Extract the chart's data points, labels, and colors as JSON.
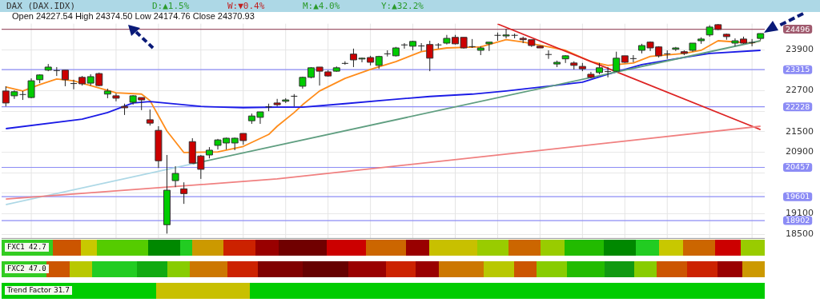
{
  "chart_data": {
    "type": "candlestick",
    "title": "DAX (DAX.IDX)",
    "categories": [
      null,
      null,
      null,
      null,
      null,
      null,
      null,
      null,
      null,
      null,
      null,
      null,
      null,
      null,
      null,
      null,
      null,
      null,
      null,
      null,
      null,
      null,
      null,
      null,
      null,
      null,
      null,
      null,
      null,
      null,
      null,
      null,
      null,
      null,
      null,
      null,
      null,
      null,
      null,
      null,
      null,
      null,
      null,
      null,
      null,
      null,
      null,
      null,
      null,
      null,
      null,
      null,
      null,
      null,
      null,
      null,
      null,
      null,
      null,
      null,
      null,
      null,
      null,
      null,
      null,
      null,
      null,
      null,
      null,
      null,
      null,
      null,
      null,
      null,
      null,
      null,
      null,
      null,
      null,
      null,
      null,
      null,
      null,
      null,
      null,
      null,
      null,
      null,
      null,
      null
    ],
    "ohlc": [
      [
        22690,
        22830,
        22240,
        22340
      ],
      [
        22550,
        22710,
        22460,
        22670
      ],
      [
        22600,
        22690,
        22430,
        22600
      ],
      [
        22500,
        23060,
        22480,
        22990
      ],
      [
        23020,
        23180,
        22920,
        23160
      ],
      [
        23300,
        23480,
        23270,
        23390
      ],
      [
        23300,
        23390,
        23130,
        23300
      ],
      [
        23300,
        23300,
        22830,
        23020
      ],
      [
        22920,
        23020,
        22740,
        22920
      ],
      [
        23090,
        23130,
        22850,
        22900
      ],
      [
        22920,
        23180,
        22850,
        23110
      ],
      [
        23200,
        23230,
        22830,
        22850
      ],
      [
        22600,
        22760,
        22480,
        22690
      ],
      [
        22550,
        22620,
        22390,
        22480
      ],
      [
        22240,
        22320,
        21990,
        22200
      ],
      [
        22360,
        22570,
        22290,
        22550
      ],
      [
        22500,
        22500,
        22130,
        22430
      ],
      [
        21850,
        22150,
        21680,
        21750
      ],
      [
        21540,
        21660,
        20440,
        20650
      ],
      [
        18780,
        20820,
        18520,
        19790
      ],
      [
        20070,
        20490,
        19880,
        20280
      ],
      [
        19830,
        20020,
        19390,
        19690
      ],
      [
        21210,
        21310,
        20580,
        20580
      ],
      [
        20790,
        20820,
        20120,
        20400
      ],
      [
        20820,
        21050,
        20720,
        20960
      ],
      [
        21100,
        21290,
        20980,
        21260
      ],
      [
        21170,
        21330,
        20980,
        21310
      ],
      [
        21170,
        21330,
        20960,
        21310
      ],
      [
        21450,
        21450,
        21120,
        21240
      ],
      [
        21820,
        22030,
        21730,
        21960
      ],
      [
        21920,
        22080,
        21730,
        22080
      ],
      [
        22240,
        22320,
        22100,
        22240
      ],
      [
        22340,
        22460,
        22240,
        22290
      ],
      [
        22390,
        22480,
        22340,
        22430
      ],
      [
        22550,
        22600,
        22240,
        22550
      ],
      [
        22830,
        23110,
        22760,
        23090
      ],
      [
        23090,
        23390,
        23060,
        23370
      ],
      [
        23390,
        23390,
        22850,
        23270
      ],
      [
        23250,
        23300,
        23110,
        23130
      ],
      [
        23270,
        23410,
        23250,
        23370
      ],
      [
        23510,
        23560,
        23460,
        23510
      ],
      [
        23770,
        23930,
        23390,
        23600
      ],
      [
        23630,
        23670,
        23530,
        23650
      ],
      [
        23670,
        23720,
        23440,
        23530
      ],
      [
        23440,
        23720,
        23340,
        23700
      ],
      [
        23790,
        23880,
        23700,
        23790
      ],
      [
        23720,
        23980,
        23700,
        23950
      ],
      [
        24050,
        24090,
        23930,
        24050
      ],
      [
        24000,
        24160,
        23880,
        24140
      ],
      [
        24020,
        24090,
        23860,
        24020
      ],
      [
        24050,
        24160,
        23270,
        23650
      ],
      [
        24050,
        24090,
        23930,
        24050
      ],
      [
        24090,
        24330,
        24050,
        24230
      ],
      [
        24260,
        24330,
        24050,
        24070
      ],
      [
        24260,
        24260,
        23930,
        23950
      ],
      [
        24000,
        24210,
        23950,
        24000
      ],
      [
        23880,
        24000,
        23740,
        23950
      ],
      [
        24070,
        24120,
        23860,
        24120
      ],
      [
        24330,
        24400,
        24160,
        24330
      ],
      [
        24300,
        24510,
        24230,
        24330
      ],
      [
        24330,
        24370,
        24230,
        24330
      ],
      [
        24230,
        24280,
        24090,
        24190
      ],
      [
        24190,
        24190,
        23980,
        24020
      ],
      [
        24000,
        24020,
        23950,
        23950
      ],
      [
        23770,
        23880,
        23630,
        23770
      ],
      [
        23480,
        23580,
        23390,
        23530
      ],
      [
        23630,
        23740,
        23510,
        23720
      ],
      [
        23510,
        23560,
        23320,
        23440
      ],
      [
        23410,
        23510,
        23270,
        23340
      ],
      [
        23180,
        23250,
        23060,
        23090
      ],
      [
        23230,
        23510,
        23180,
        23370
      ],
      [
        23270,
        23390,
        23090,
        23270
      ],
      [
        23270,
        23840,
        23250,
        23650
      ],
      [
        23720,
        23720,
        23510,
        23530
      ],
      [
        23650,
        23740,
        23530,
        23650
      ],
      [
        23880,
        24070,
        23790,
        24020
      ],
      [
        24120,
        24140,
        23860,
        23950
      ],
      [
        23980,
        24000,
        23670,
        23720
      ],
      [
        23790,
        23880,
        23630,
        23790
      ],
      [
        23910,
        23980,
        23860,
        23950
      ],
      [
        23840,
        23880,
        23740,
        23790
      ],
      [
        23880,
        24090,
        23840,
        24090
      ],
      [
        24160,
        24260,
        24070,
        24210
      ],
      [
        24330,
        24610,
        24280,
        24560
      ],
      [
        24630,
        24650,
        24470,
        24490
      ],
      [
        24350,
        24370,
        24190,
        24280
      ],
      [
        24090,
        24230,
        24000,
        24160
      ],
      [
        24210,
        24280,
        24070,
        24090
      ],
      [
        24120,
        24210,
        24000,
        24120
      ],
      [
        24227.54,
        24374.5,
        24174.76,
        24370.93
      ]
    ],
    "series": [
      {
        "type": "line",
        "color": "#f08080",
        "values": [
          19530,
          null,
          null,
          null,
          null,
          null,
          null,
          null,
          null,
          null,
          null,
          null,
          null,
          null,
          null,
          null,
          null,
          null,
          null,
          null,
          null,
          null,
          null,
          null,
          null,
          null,
          null,
          null,
          null,
          null,
          null,
          null,
          20120,
          null,
          null,
          null,
          null,
          null,
          null,
          null,
          null,
          null,
          null,
          null,
          null,
          null,
          null,
          null,
          null,
          null,
          null,
          null,
          null,
          null,
          null,
          null,
          null,
          null,
          null,
          null,
          null,
          null,
          null,
          null,
          20980,
          null,
          null,
          null,
          null,
          null,
          null,
          null,
          null,
          null,
          null,
          null,
          null,
          null,
          null,
          null,
          null,
          null,
          null,
          null,
          null,
          null,
          null,
          null,
          null,
          21660
        ]
      },
      {
        "type": "line",
        "color": "#add8e6",
        "values": [
          19370,
          null,
          null,
          null,
          null,
          null,
          null,
          null,
          null,
          null,
          null,
          null,
          null,
          null,
          null,
          null,
          null,
          null,
          null,
          null,
          null,
          null,
          20560,
          null,
          null,
          null,
          null,
          null,
          null,
          null,
          null,
          null,
          null,
          null,
          null,
          null,
          null,
          null,
          null,
          null,
          null,
          null,
          null,
          null,
          null,
          null,
          null,
          null,
          null,
          null,
          null,
          null,
          null,
          null,
          null,
          null,
          null,
          null,
          null,
          null,
          null,
          null,
          null,
          null,
          null,
          null,
          null,
          null,
          null,
          null,
          null,
          null,
          null,
          null,
          null,
          null,
          null,
          null,
          null,
          null,
          null,
          null,
          null,
          null,
          null,
          null,
          null,
          null,
          null,
          null
        ]
      },
      {
        "type": "line",
        "color": "#5f9e80",
        "values": [
          null,
          null,
          null,
          null,
          null,
          null,
          null,
          null,
          null,
          null,
          null,
          null,
          null,
          null,
          null,
          null,
          null,
          null,
          null,
          null,
          null,
          null,
          20560,
          null,
          null,
          null,
          null,
          null,
          null,
          null,
          null,
          null,
          null,
          null,
          null,
          null,
          null,
          null,
          null,
          null,
          null,
          null,
          null,
          null,
          null,
          null,
          null,
          null,
          null,
          null,
          null,
          null,
          null,
          null,
          null,
          null,
          null,
          null,
          null,
          null,
          null,
          null,
          null,
          null,
          null,
          null,
          null,
          null,
          null,
          null,
          null,
          null,
          null,
          null,
          null,
          null,
          null,
          null,
          null,
          null,
          null,
          null,
          null,
          null,
          null,
          null,
          null,
          null,
          null,
          24160
        ]
      },
      {
        "type": "line",
        "color": "#dd2222",
        "values": [
          null,
          null,
          null,
          null,
          null,
          null,
          null,
          null,
          null,
          null,
          null,
          null,
          null,
          null,
          null,
          null,
          null,
          null,
          null,
          null,
          null,
          null,
          null,
          null,
          null,
          null,
          null,
          null,
          null,
          null,
          null,
          null,
          null,
          null,
          null,
          null,
          null,
          null,
          null,
          null,
          null,
          null,
          null,
          null,
          null,
          null,
          null,
          null,
          null,
          null,
          null,
          null,
          null,
          null,
          null,
          null,
          null,
          null,
          24650,
          null,
          null,
          null,
          null,
          null,
          null,
          null,
          null,
          null,
          null,
          null,
          null,
          null,
          null,
          null,
          null,
          null,
          null,
          null,
          null,
          null,
          null,
          null,
          null,
          null,
          null,
          null,
          null,
          null,
          null,
          21560
        ]
      },
      {
        "type": "line",
        "color": "#1a1ae6",
        "values": [
          21590,
          null,
          null,
          null,
          null,
          null,
          null,
          null,
          null,
          21870,
          null,
          null,
          22060,
          null,
          null,
          22340,
          null,
          22380,
          null,
          null,
          null,
          null,
          null,
          22240,
          null,
          null,
          null,
          null,
          22200,
          null,
          null,
          null,
          22220,
          null,
          null,
          22220,
          null,
          null,
          null,
          null,
          22320,
          null,
          null,
          null,
          null,
          22430,
          null,
          null,
          null,
          null,
          22530,
          null,
          null,
          null,
          null,
          22600,
          null,
          null,
          null,
          22690,
          null,
          null,
          null,
          null,
          22830,
          null,
          null,
          null,
          22950,
          null,
          null,
          23180,
          null,
          null,
          null,
          23460,
          null,
          null,
          null,
          null,
          23670,
          null,
          null,
          23790,
          null,
          null,
          null,
          null,
          null,
          23880
        ]
      },
      {
        "type": "line",
        "color": "#ff8c1a",
        "values": [
          22810,
          null,
          22690,
          null,
          22880,
          null,
          23040,
          null,
          22990,
          null,
          null,
          null,
          null,
          22640,
          null,
          null,
          22600,
          22410,
          null,
          21520,
          null,
          20890,
          null,
          null,
          null,
          20910,
          null,
          null,
          21070,
          null,
          null,
          21420,
          21660,
          null,
          22060,
          22290,
          null,
          22690,
          null,
          null,
          23060,
          null,
          null,
          23320,
          null,
          null,
          23550,
          null,
          null,
          23840,
          null,
          null,
          23950,
          null,
          null,
          null,
          23980,
          null,
          null,
          24190,
          null,
          24120,
          null,
          null,
          23980,
          null,
          23880,
          null,
          null,
          23550,
          null,
          23440,
          null,
          null,
          23510,
          null,
          23700,
          null,
          null,
          null,
          23790,
          null,
          23880,
          null,
          24160,
          null,
          null,
          null,
          24090,
          24160
        ]
      }
    ],
    "ylim": [
      18380,
      24660
    ],
    "yticks": [
      18500,
      19100,
      {
        "value": 19700,
        "label": null
      },
      {
        "value": 20300,
        "label": null
      },
      20900,
      21500,
      {
        "value": 22100,
        "label": null
      },
      22700,
      {
        "value": 23300,
        "label": null
      },
      23900,
      {
        "value": 24500,
        "label": null
      }
    ],
    "ref_lines": [
      {
        "axis": "y",
        "value": 24496,
        "label": "24496",
        "color": "#a05a6e"
      },
      {
        "axis": "y",
        "value": 23315,
        "label": "23315",
        "color": "#8c8cf5"
      },
      {
        "axis": "y",
        "value": 22228,
        "label": "22228",
        "color": "#8c8cf5"
      },
      {
        "axis": "y",
        "value": 20457,
        "label": "20457",
        "color": "#8c8cf5"
      },
      {
        "axis": "y",
        "value": 19601,
        "label": "19601",
        "color": "#8c8cf5"
      },
      {
        "axis": "y",
        "value": 18902,
        "label": "18902",
        "color": "#8c8cf5"
      }
    ],
    "annotations": [
      "Open 24227.54 High 24374.50 Low 24174.76 Close 24370.93",
      "D:▲1.5%",
      "W:▼0.4%",
      "M:▲4.0%",
      "Y:▲32.2%",
      "FXC1 42.7",
      "FXC2 47.0",
      "Trend Factor 31.7"
    ],
    "grid": true,
    "legend": false,
    "tick_labels": "y"
  }
}
